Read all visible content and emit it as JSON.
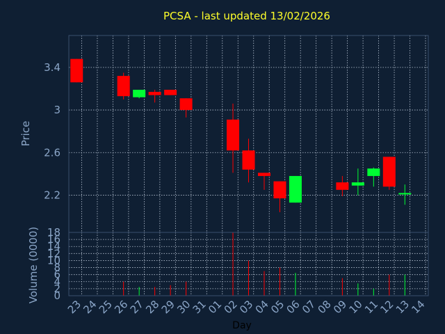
{
  "title": "PCSA - last updated 13/02/2026",
  "chart_data": [
    {
      "type": "candlestick",
      "ylabel": "Price",
      "ylim": [
        1.85,
        3.7
      ],
      "yticks": [
        "2.2",
        "2.6",
        "3",
        "3.4"
      ],
      "ytick_values": [
        2.2,
        2.6,
        3.0,
        3.4
      ],
      "grid": true,
      "up_color": "#00ff33",
      "down_color": "#ff0000",
      "candles": [
        {
          "x": "23",
          "open": 3.48,
          "high": 3.48,
          "low": 3.26,
          "close": 3.26
        },
        {
          "x": "26",
          "open": 3.32,
          "high": 3.35,
          "low": 3.1,
          "close": 3.13
        },
        {
          "x": "27",
          "open": 3.12,
          "high": 3.19,
          "low": 3.11,
          "close": 3.19
        },
        {
          "x": "28",
          "open": 3.17,
          "high": 3.19,
          "low": 3.07,
          "close": 3.14
        },
        {
          "x": "29",
          "open": 3.19,
          "high": 3.19,
          "low": 3.14,
          "close": 3.14
        },
        {
          "x": "30",
          "open": 3.11,
          "high": 3.11,
          "low": 2.93,
          "close": 3.0
        },
        {
          "x": "02",
          "open": 2.91,
          "high": 3.06,
          "low": 2.41,
          "close": 2.62
        },
        {
          "x": "03",
          "open": 2.62,
          "high": 2.73,
          "low": 2.32,
          "close": 2.44
        },
        {
          "x": "04",
          "open": 2.41,
          "high": 2.41,
          "low": 2.25,
          "close": 2.38
        },
        {
          "x": "05",
          "open": 2.33,
          "high": 2.33,
          "low": 2.04,
          "close": 2.17
        },
        {
          "x": "06",
          "open": 2.13,
          "high": 2.38,
          "low": 2.13,
          "close": 2.38
        },
        {
          "x": "09",
          "open": 2.32,
          "high": 2.38,
          "low": 2.19,
          "close": 2.25
        },
        {
          "x": "10",
          "open": 2.29,
          "high": 2.45,
          "low": 2.2,
          "close": 2.32
        },
        {
          "x": "11",
          "open": 2.38,
          "high": 2.46,
          "low": 2.28,
          "close": 2.45
        },
        {
          "x": "12",
          "open": 2.56,
          "high": 2.56,
          "low": 2.25,
          "close": 2.28
        },
        {
          "x": "13",
          "open": 2.21,
          "high": 2.3,
          "low": 2.11,
          "close": 2.22
        }
      ]
    },
    {
      "type": "bar",
      "ylabel": "Volume (0000)",
      "xlabel": "Day",
      "ylim": [
        0,
        18
      ],
      "yticks": [
        "0",
        "2",
        "4",
        "6",
        "8",
        "10",
        "12",
        "14",
        "16",
        "18"
      ],
      "categories": [
        "23",
        "24",
        "25",
        "26",
        "27",
        "28",
        "29",
        "30",
        "31",
        "01",
        "02",
        "03",
        "04",
        "05",
        "06",
        "07",
        "08",
        "09",
        "10",
        "11",
        "12",
        "13",
        "14"
      ],
      "values": [
        0,
        0,
        0,
        4,
        2.5,
        2.5,
        3,
        4,
        0,
        0,
        18,
        10,
        7,
        8,
        6.5,
        0,
        0,
        5,
        3.5,
        2,
        6,
        6,
        0
      ],
      "colors": [
        "",
        "",
        "",
        "down",
        "up",
        "down",
        "down",
        "down",
        "",
        "",
        "down",
        "down",
        "down",
        "down",
        "up",
        "",
        "",
        "down",
        "up",
        "up",
        "down",
        "up",
        ""
      ]
    }
  ]
}
